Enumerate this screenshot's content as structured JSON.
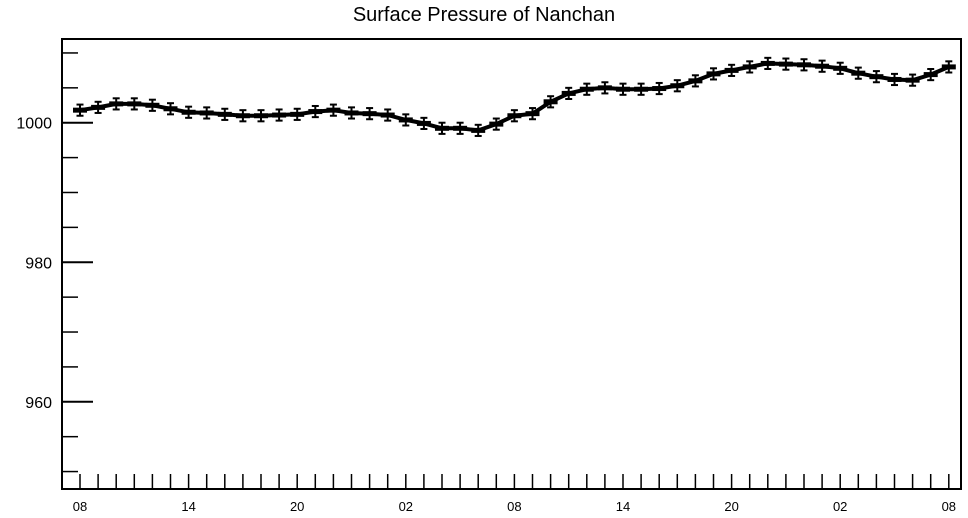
{
  "chart_data": {
    "type": "line",
    "title": "Surface Pressure of Nanchan",
    "xlabel": "",
    "ylabel": "",
    "ylim": [
      947.5,
      1012
    ],
    "y_major_ticks": [
      960,
      980,
      1000
    ],
    "y_minor_step": 5,
    "x_tick_labels": [
      "08",
      "14",
      "20",
      "02",
      "08",
      "14",
      "20",
      "02",
      "08"
    ],
    "x_ticks_count": 49,
    "error_bar": 0.8,
    "values": [
      1001.8,
      1002.2,
      1002.7,
      1002.7,
      1002.5,
      1002.0,
      1001.5,
      1001.4,
      1001.2,
      1001.0,
      1001.0,
      1001.1,
      1001.2,
      1001.6,
      1001.8,
      1001.4,
      1001.3,
      1001.1,
      1000.4,
      999.9,
      999.2,
      999.2,
      998.9,
      999.8,
      1001.0,
      1001.3,
      1003.0,
      1004.2,
      1004.8,
      1005.0,
      1004.8,
      1004.8,
      1004.9,
      1005.3,
      1006.0,
      1007.0,
      1007.5,
      1008.0,
      1008.5,
      1008.4,
      1008.3,
      1008.1,
      1007.8,
      1007.1,
      1006.6,
      1006.2,
      1006.1,
      1006.9,
      1008.0
    ],
    "colors": {
      "line": "#000000",
      "axis": "#000000",
      "background": "#ffffff"
    }
  }
}
